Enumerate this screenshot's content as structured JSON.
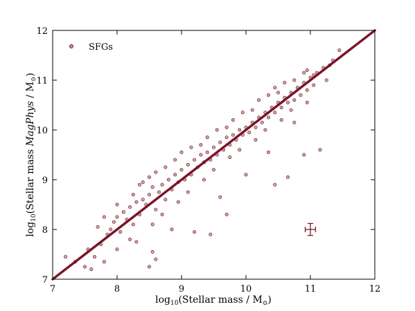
{
  "chart_data": {
    "type": "scatter",
    "xlabel": "log10(Stellar mass / M⊙)",
    "ylabel": "log10(Stellar mass MagPhys / M⊙)",
    "xlim": [
      7,
      12
    ],
    "ylim": [
      7,
      12
    ],
    "xticks": [
      "7",
      "8",
      "9",
      "10",
      "11",
      "12"
    ],
    "yticks": [
      "7",
      "8",
      "9",
      "10",
      "11",
      "12"
    ],
    "legend": {
      "label": "SFGs",
      "position": "top-left"
    },
    "one_to_one_line": {
      "x": [
        7,
        12
      ],
      "y": [
        7,
        12
      ],
      "color": "#7a1526"
    },
    "error_bar": {
      "x": 11.0,
      "y": 8.0,
      "xerr": 0.08,
      "yerr": 0.12
    },
    "series": [
      {
        "name": "SFGs",
        "marker_color": "#c98a98",
        "marker_edge": "#5a0f1a",
        "points": [
          [
            7.2,
            7.45
          ],
          [
            7.35,
            7.35
          ],
          [
            7.5,
            7.25
          ],
          [
            7.55,
            7.6
          ],
          [
            7.65,
            7.45
          ],
          [
            7.7,
            8.05
          ],
          [
            7.75,
            7.7
          ],
          [
            7.8,
            7.35
          ],
          [
            7.85,
            7.9
          ],
          [
            7.9,
            8.0
          ],
          [
            7.95,
            8.15
          ],
          [
            8.0,
            8.25
          ],
          [
            8.05,
            7.95
          ],
          [
            8.1,
            8.35
          ],
          [
            8.15,
            8.2
          ],
          [
            8.2,
            8.45
          ],
          [
            8.25,
            8.1
          ],
          [
            8.3,
            8.55
          ],
          [
            8.35,
            8.3
          ],
          [
            8.4,
            8.6
          ],
          [
            8.45,
            8.5
          ],
          [
            8.5,
            8.7
          ],
          [
            8.5,
            7.25
          ],
          [
            8.55,
            7.55
          ],
          [
            8.55,
            8.85
          ],
          [
            8.6,
            8.4
          ],
          [
            8.65,
            8.75
          ],
          [
            8.7,
            8.9
          ],
          [
            8.75,
            8.6
          ],
          [
            8.8,
            9.0
          ],
          [
            8.85,
            8.8
          ],
          [
            8.9,
            9.1
          ],
          [
            8.95,
            8.95
          ],
          [
            9.0,
            9.2
          ],
          [
            9.05,
            9.0
          ],
          [
            9.1,
            9.3
          ],
          [
            9.15,
            9.1
          ],
          [
            9.2,
            9.4
          ],
          [
            9.25,
            9.25
          ],
          [
            9.3,
            9.5
          ],
          [
            9.35,
            9.35
          ],
          [
            9.4,
            9.55
          ],
          [
            9.45,
            9.4
          ],
          [
            9.5,
            9.65
          ],
          [
            9.55,
            9.5
          ],
          [
            9.6,
            9.75
          ],
          [
            9.65,
            9.6
          ],
          [
            9.7,
            9.85
          ],
          [
            9.75,
            9.7
          ],
          [
            9.8,
            9.9
          ],
          [
            9.85,
            9.8
          ],
          [
            9.9,
            10.0
          ],
          [
            9.95,
            9.9
          ],
          [
            10.0,
            10.05
          ],
          [
            10.05,
            9.95
          ],
          [
            10.1,
            10.15
          ],
          [
            10.15,
            10.05
          ],
          [
            10.2,
            10.25
          ],
          [
            10.25,
            10.15
          ],
          [
            10.3,
            10.35
          ],
          [
            10.35,
            10.25
          ],
          [
            10.4,
            10.45
          ],
          [
            10.45,
            10.35
          ],
          [
            10.5,
            10.55
          ],
          [
            10.55,
            10.45
          ],
          [
            10.6,
            10.65
          ],
          [
            10.65,
            10.55
          ],
          [
            10.7,
            10.75
          ],
          [
            10.75,
            10.6
          ],
          [
            10.8,
            10.85
          ],
          [
            10.85,
            10.7
          ],
          [
            10.9,
            10.95
          ],
          [
            10.95,
            10.8
          ],
          [
            11.0,
            11.05
          ],
          [
            11.05,
            10.9
          ],
          [
            11.1,
            11.15
          ],
          [
            11.2,
            11.25
          ],
          [
            11.3,
            11.3
          ],
          [
            11.45,
            11.6
          ],
          [
            8.0,
            7.6
          ],
          [
            8.2,
            7.8
          ],
          [
            8.4,
            8.95
          ],
          [
            8.7,
            8.3
          ],
          [
            8.9,
            9.4
          ],
          [
            9.1,
            8.75
          ],
          [
            9.3,
            9.7
          ],
          [
            9.5,
            9.2
          ],
          [
            9.7,
            10.05
          ],
          [
            9.9,
            9.6
          ],
          [
            10.1,
            10.4
          ],
          [
            10.3,
            10.0
          ],
          [
            10.5,
            10.75
          ],
          [
            10.7,
            10.4
          ],
          [
            10.9,
            11.15
          ],
          [
            8.35,
            8.9
          ],
          [
            8.6,
            9.15
          ],
          [
            9.0,
            9.55
          ],
          [
            9.4,
            9.85
          ],
          [
            9.8,
            10.2
          ],
          [
            10.2,
            10.6
          ],
          [
            10.6,
            10.95
          ],
          [
            8.55,
            8.1
          ],
          [
            8.95,
            8.55
          ],
          [
            9.35,
            9.0
          ],
          [
            9.75,
            9.45
          ],
          [
            10.15,
            9.8
          ],
          [
            10.55,
            10.2
          ],
          [
            10.95,
            10.55
          ],
          [
            9.45,
            7.9
          ],
          [
            9.7,
            8.3
          ],
          [
            10.45,
            8.9
          ],
          [
            10.65,
            9.05
          ],
          [
            11.15,
            9.6
          ],
          [
            10.9,
            9.5
          ],
          [
            9.2,
            7.95
          ],
          [
            8.6,
            7.4
          ],
          [
            7.6,
            7.2
          ],
          [
            8.3,
            7.75
          ],
          [
            10.35,
            9.55
          ],
          [
            10.0,
            9.1
          ],
          [
            9.6,
            8.65
          ],
          [
            8.85,
            8.0
          ],
          [
            10.75,
            10.15
          ],
          [
            7.8,
            8.25
          ],
          [
            8.0,
            8.5
          ],
          [
            8.25,
            8.7
          ],
          [
            8.5,
            9.05
          ],
          [
            8.75,
            9.25
          ],
          [
            9.15,
            9.65
          ],
          [
            9.55,
            10.0
          ],
          [
            9.95,
            10.35
          ],
          [
            10.35,
            10.7
          ],
          [
            10.75,
            11.0
          ],
          [
            11.05,
            11.1
          ],
          [
            11.25,
            11.0
          ],
          [
            11.35,
            11.4
          ],
          [
            10.95,
            11.2
          ],
          [
            10.45,
            10.85
          ]
        ]
      }
    ]
  }
}
